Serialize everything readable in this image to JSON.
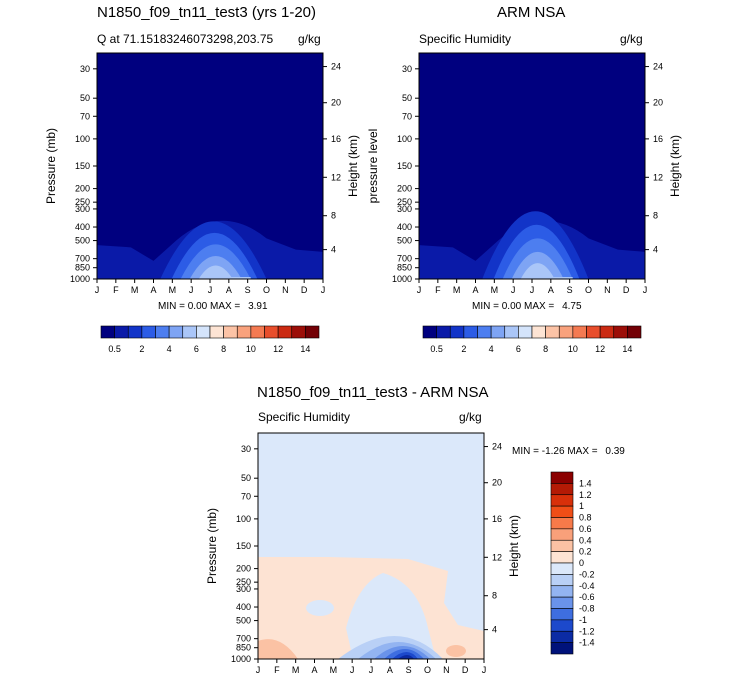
{
  "chart_data": [
    {
      "type": "heatmap",
      "title": "N1850_f09_tn11_test3 (yrs 1-20)",
      "subtitle_left": "Q at 71.15183246073298,203.75",
      "subtitle_right": "g/kg",
      "xlabel": "",
      "ylabel": "Pressure (mb)",
      "ylabel_right": "Height (km)",
      "x_ticks": [
        "J",
        "F",
        "M",
        "A",
        "M",
        "J",
        "J",
        "A",
        "S",
        "O",
        "N",
        "D",
        "J"
      ],
      "y_ticks": [
        "30",
        "50",
        "70",
        "100",
        "150",
        "200",
        "250",
        "300",
        "400",
        "500",
        "700",
        "850",
        "1000"
      ],
      "y_right_ticks": [
        "24",
        "20",
        "16",
        "12",
        "8",
        "4"
      ],
      "min_label": "MIN =",
      "min_value": "0.00",
      "max_label": "MAX =",
      "max_value": "3.91",
      "colorbar_labels": [
        "0.5",
        "2",
        "4",
        "6",
        "8",
        "10",
        "12",
        "14"
      ]
    },
    {
      "type": "heatmap",
      "title": "ARM NSA",
      "subtitle_left": "Specific Humidity",
      "subtitle_right": "g/kg",
      "xlabel": "",
      "ylabel": "pressure level",
      "ylabel_right": "Height (km)",
      "x_ticks": [
        "J",
        "F",
        "M",
        "A",
        "M",
        "J",
        "J",
        "A",
        "S",
        "O",
        "N",
        "D",
        "J"
      ],
      "y_ticks": [
        "30",
        "50",
        "70",
        "100",
        "150",
        "200",
        "250",
        "300",
        "400",
        "500",
        "700",
        "850",
        "1000"
      ],
      "y_right_ticks": [
        "24",
        "20",
        "16",
        "12",
        "8",
        "4"
      ],
      "min_label": "MIN =",
      "min_value": "0.00",
      "max_label": "MAX =",
      "max_value": "4.75",
      "colorbar_labels": [
        "0.5",
        "2",
        "4",
        "6",
        "8",
        "10",
        "12",
        "14"
      ]
    },
    {
      "type": "heatmap",
      "title": "N1850_f09_tn11_test3 - ARM NSA",
      "subtitle_left": "Specific Humidity",
      "subtitle_right": "g/kg",
      "xlabel": "",
      "ylabel": "Pressure (mb)",
      "ylabel_right": "Height (km)",
      "x_ticks": [
        "J",
        "F",
        "M",
        "A",
        "M",
        "J",
        "J",
        "A",
        "S",
        "O",
        "N",
        "D",
        "J"
      ],
      "y_ticks": [
        "30",
        "50",
        "70",
        "100",
        "150",
        "200",
        "250",
        "300",
        "400",
        "500",
        "700",
        "850",
        "1000"
      ],
      "y_right_ticks": [
        "24",
        "20",
        "16",
        "12",
        "8",
        "4"
      ],
      "min_label": "MIN =",
      "min_value": "-1.26",
      "max_label": "MAX =",
      "max_value": "0.39",
      "colorbar_labels": [
        "1.4",
        "1.2",
        "1",
        "0.8",
        "0.6",
        "0.4",
        "0.2",
        "0",
        "-0.2",
        "-0.4",
        "-0.6",
        "-0.8",
        "-1",
        "-1.2",
        "-1.4"
      ]
    }
  ],
  "colors": {
    "background": "#ffffff",
    "abs_levels": [
      "#00007f",
      "#0a1aa8",
      "#1234c8",
      "#2c5ce6",
      "#4d7ef0",
      "#7ea4f4",
      "#aac6f8",
      "#d4e4fb",
      "#fde4d4",
      "#fcc3a6",
      "#f9a27d",
      "#f47a52",
      "#e84e2c",
      "#cb2a12",
      "#9c0e08",
      "#730005"
    ],
    "diff_levels": [
      "#8b0000",
      "#b41a05",
      "#d8300a",
      "#f04e17",
      "#f77a4a",
      "#f9a07a",
      "#fbc2a4",
      "#fde3d3",
      "#dbe8fa",
      "#b9d0f6",
      "#93b4f1",
      "#6a93ea",
      "#3e6ee0",
      "#1c49cc",
      "#0b2ba4",
      "#00127a"
    ]
  }
}
